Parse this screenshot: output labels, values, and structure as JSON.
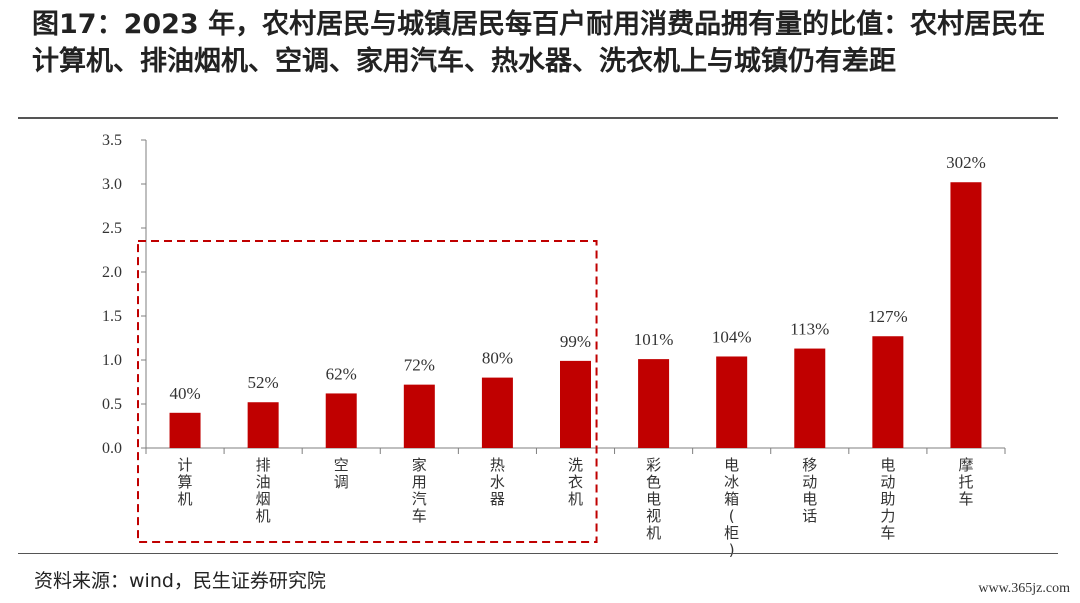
{
  "figure": {
    "title": "图17：2023 年，农村居民与城镇居民每百户耐用消费品拥有量的比值：农村居民在计算机、排油烟机、空调、家用汽车、热水器、洗衣机上与城镇仍有差距",
    "source": "资料来源：wind，民生证券研究院",
    "watermark": "www.365jz.com"
  },
  "colors": {
    "bar": "#C00000",
    "highlight_box": "#C00000",
    "axis": "#7f7f7f"
  },
  "chart_data": {
    "type": "bar",
    "title": "",
    "xlabel": "",
    "ylabel": "",
    "ylim": [
      0,
      3.5
    ],
    "yticks": [
      "0.0",
      "0.5",
      "1.0",
      "1.5",
      "2.0",
      "2.5",
      "3.0",
      "3.5"
    ],
    "categories": [
      "计算机",
      "排油烟机",
      "空调",
      "家用汽车",
      "热水器",
      "洗衣机",
      "彩色电视机",
      "电冰箱(柜)",
      "移动电话",
      "电动助力车",
      "摩托车"
    ],
    "values": [
      0.4,
      0.52,
      0.62,
      0.72,
      0.8,
      0.99,
      1.01,
      1.04,
      1.13,
      1.27,
      3.02
    ],
    "data_labels": [
      "40%",
      "52%",
      "62%",
      "72%",
      "80%",
      "99%",
      "101%",
      "104%",
      "113%",
      "127%",
      "302%"
    ],
    "grid": false,
    "legend": "none",
    "highlight": {
      "categories": [
        "计算机",
        "排油烟机",
        "空调",
        "家用汽车",
        "热水器",
        "洗衣机"
      ],
      "style": "dashed-box"
    }
  }
}
